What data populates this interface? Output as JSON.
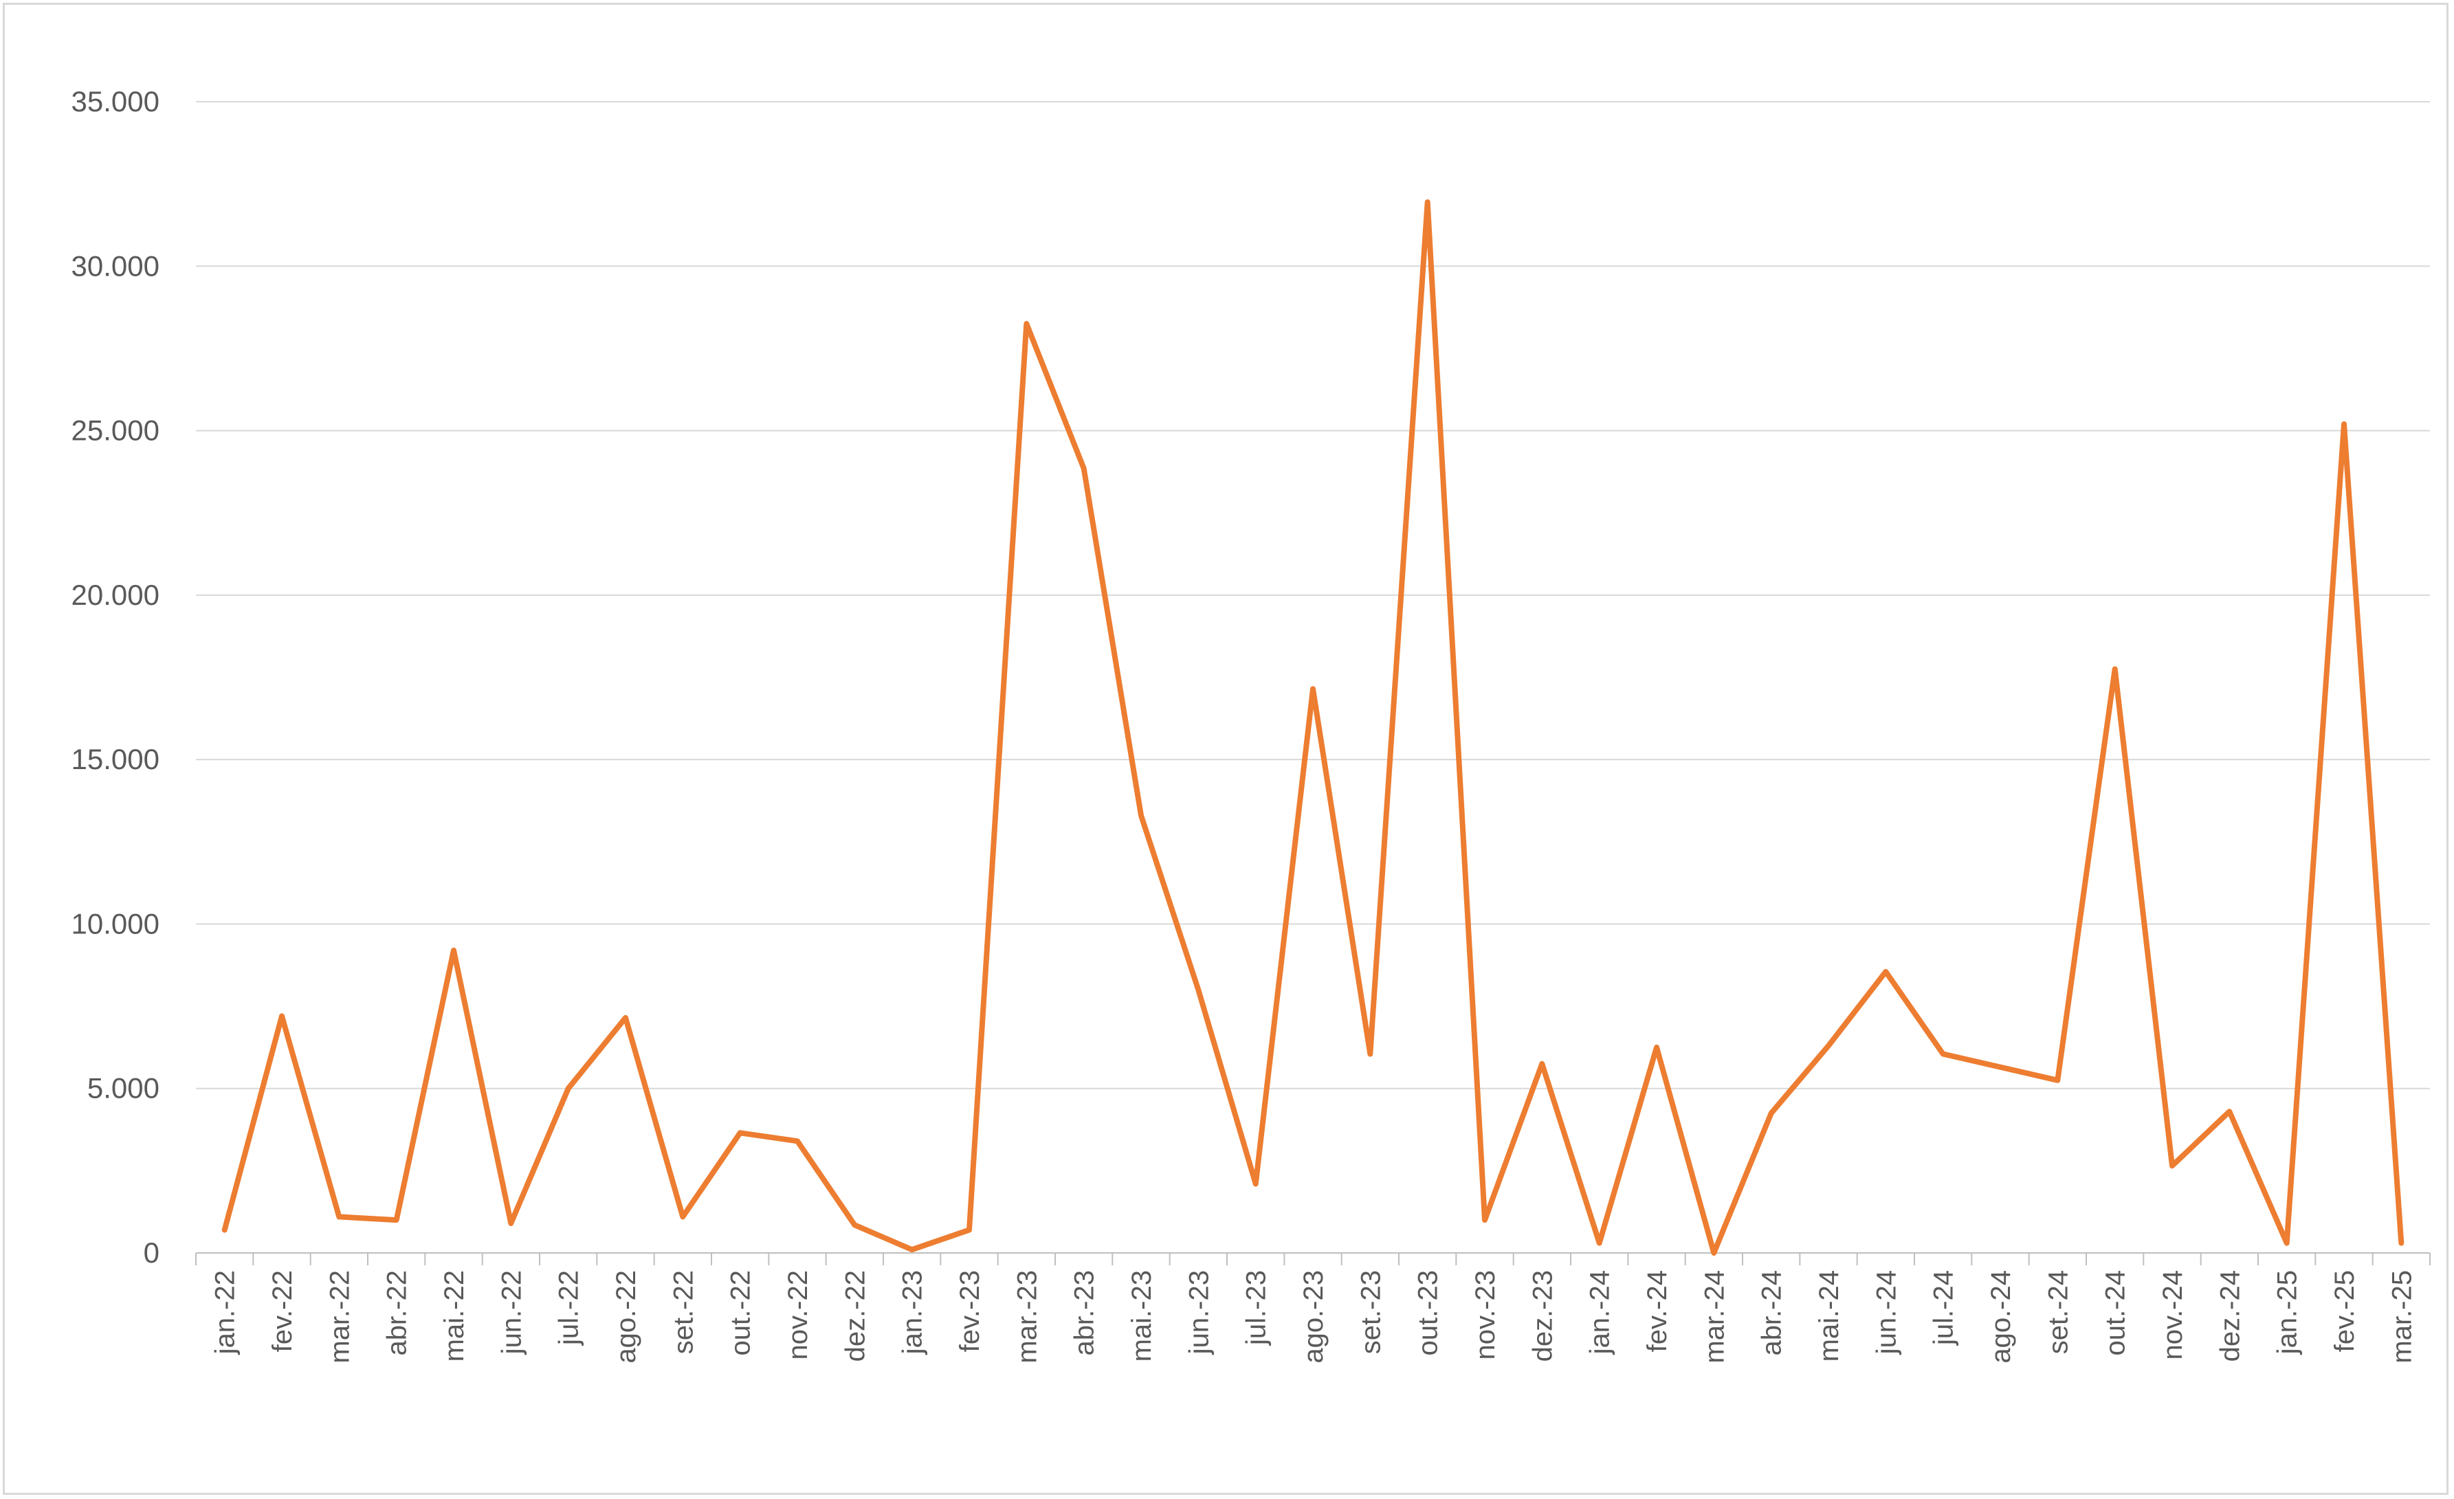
{
  "chart_data": {
    "type": "line",
    "title": "",
    "xlabel": "",
    "ylabel": "",
    "ylim": [
      0,
      35000
    ],
    "y_ticks": [
      0,
      5000,
      10000,
      15000,
      20000,
      25000,
      30000,
      35000
    ],
    "y_tick_labels": [
      "0",
      "5.000",
      "10.000",
      "15.000",
      "20.000",
      "25.000",
      "30.000",
      "35.000"
    ],
    "grid": "horizontal",
    "legend": "none",
    "categories": [
      "jan.-22",
      "fev.-22",
      "mar.-22",
      "abr.-22",
      "mai.-22",
      "jun.-22",
      "jul.-22",
      "ago.-22",
      "set.-22",
      "out.-22",
      "nov.-22",
      "dez.-22",
      "jan.-23",
      "fev.-23",
      "mar.-23",
      "abr.-23",
      "mai.-23",
      "jun.-23",
      "jul.-23",
      "ago.-23",
      "set.-23",
      "out.-23",
      "nov.-23",
      "dez.-23",
      "jan.-24",
      "fev.-24",
      "mar.-24",
      "abr.-24",
      "mai.-24",
      "jun.-24",
      "jul.-24",
      "ago.-24",
      "set.-24",
      "out.-24",
      "nov.-24",
      "dez.-24",
      "jan.-25",
      "fev.-25",
      "mar.-25"
    ],
    "series": [
      {
        "color": "#ed7d31",
        "values": [
          700,
          7200,
          1100,
          1000,
          9200,
          900,
          5000,
          7150,
          1100,
          3650,
          3400,
          850,
          100,
          700,
          28250,
          23850,
          13300,
          8000,
          2100,
          17150,
          6050,
          31950,
          1000,
          5750,
          300,
          6250,
          0,
          4250,
          6300,
          8550,
          6050,
          5650,
          5250,
          17750,
          2650,
          4300,
          300,
          25200,
          300
        ]
      }
    ]
  },
  "colors": {
    "line": "#ed7d31",
    "gridline": "#d9d9d9",
    "axis": "#bfbfbf",
    "tick_text": "#595959",
    "border": "#d9d9d9"
  }
}
